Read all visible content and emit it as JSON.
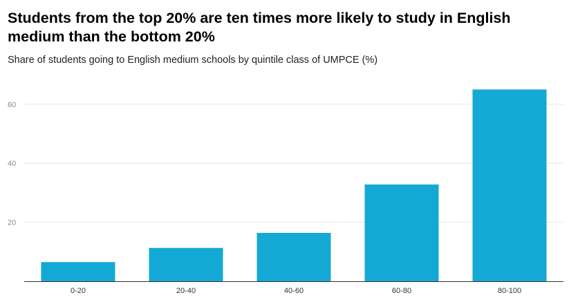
{
  "title": "Students from the top 20% are ten times more likely to study in English medium than the bottom 20%",
  "subtitle": "Share of students going to English medium schools by quintile class of UMPCE (%)",
  "chart_data": {
    "type": "bar",
    "title": "Students from the top 20% are ten times more likely to study in English medium than the bottom 20%",
    "subtitle": "Share of students going to English medium schools by quintile class of UMPCE (%)",
    "categories": [
      "0-20",
      "20-40",
      "40-60",
      "60-80",
      "80-100"
    ],
    "values": [
      6.5,
      11.3,
      16.4,
      32.8,
      65.0
    ],
    "xlabel": "",
    "ylabel": "",
    "ylim": [
      0,
      70
    ],
    "yticks": [
      20,
      40,
      60
    ],
    "grid": true,
    "legend": "none",
    "bar_color": "#14a9d5",
    "gridline_color": "#e6e6e6",
    "axis_color": "#333333"
  }
}
